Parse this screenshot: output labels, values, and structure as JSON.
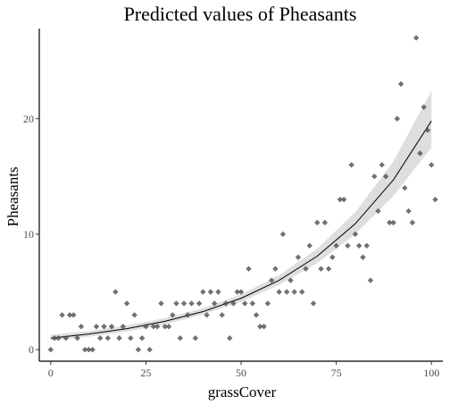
{
  "chart_data": {
    "type": "scatter",
    "title": "Predicted values of Pheasants",
    "xlabel": "grassCover",
    "ylabel": "Pheasants",
    "xlim": [
      -3,
      103
    ],
    "ylim": [
      -1,
      27.8
    ],
    "xticks": [
      0,
      25,
      50,
      75,
      100
    ],
    "yticks": [
      0,
      10,
      20
    ],
    "grid": false,
    "points": [
      [
        0,
        0
      ],
      [
        1,
        1
      ],
      [
        2,
        1
      ],
      [
        3,
        3
      ],
      [
        4,
        1
      ],
      [
        5,
        3
      ],
      [
        6,
        3
      ],
      [
        7,
        1
      ],
      [
        8,
        2
      ],
      [
        9,
        0
      ],
      [
        10,
        0
      ],
      [
        11,
        0
      ],
      [
        12,
        2
      ],
      [
        13,
        1
      ],
      [
        14,
        2
      ],
      [
        15,
        1
      ],
      [
        16,
        2
      ],
      [
        17,
        5
      ],
      [
        18,
        1
      ],
      [
        19,
        2
      ],
      [
        20,
        4
      ],
      [
        21,
        1
      ],
      [
        22,
        3
      ],
      [
        23,
        0
      ],
      [
        24,
        1
      ],
      [
        25,
        2
      ],
      [
        26,
        0
      ],
      [
        27,
        2
      ],
      [
        28,
        2
      ],
      [
        29,
        4
      ],
      [
        30,
        2
      ],
      [
        31,
        2
      ],
      [
        32,
        3
      ],
      [
        33,
        4
      ],
      [
        34,
        1
      ],
      [
        35,
        4
      ],
      [
        36,
        3
      ],
      [
        37,
        4
      ],
      [
        38,
        1
      ],
      [
        39,
        4
      ],
      [
        40,
        5
      ],
      [
        41,
        3
      ],
      [
        42,
        5
      ],
      [
        43,
        4
      ],
      [
        44,
        5
      ],
      [
        45,
        3
      ],
      [
        46,
        4
      ],
      [
        47,
        1
      ],
      [
        48,
        4
      ],
      [
        49,
        5
      ],
      [
        50,
        5
      ],
      [
        51,
        4
      ],
      [
        52,
        7
      ],
      [
        53,
        4
      ],
      [
        54,
        3
      ],
      [
        55,
        2
      ],
      [
        56,
        2
      ],
      [
        57,
        4
      ],
      [
        58,
        6
      ],
      [
        59,
        7
      ],
      [
        60,
        5
      ],
      [
        61,
        10
      ],
      [
        62,
        5
      ],
      [
        63,
        6
      ],
      [
        64,
        5
      ],
      [
        65,
        8
      ],
      [
        66,
        5
      ],
      [
        67,
        7
      ],
      [
        68,
        9
      ],
      [
        69,
        4
      ],
      [
        70,
        11
      ],
      [
        71,
        7
      ],
      [
        72,
        11
      ],
      [
        73,
        7
      ],
      [
        74,
        8
      ],
      [
        75,
        9
      ],
      [
        76,
        13
      ],
      [
        77,
        13
      ],
      [
        78,
        9
      ],
      [
        79,
        16
      ],
      [
        80,
        10
      ],
      [
        81,
        9
      ],
      [
        82,
        8
      ],
      [
        83,
        9
      ],
      [
        84,
        6
      ],
      [
        85,
        15
      ],
      [
        86,
        12
      ],
      [
        87,
        16
      ],
      [
        88,
        15
      ],
      [
        89,
        11
      ],
      [
        90,
        11
      ],
      [
        91,
        20
      ],
      [
        92,
        23
      ],
      [
        93,
        14
      ],
      [
        94,
        12
      ],
      [
        95,
        11
      ],
      [
        96,
        27
      ],
      [
        97,
        17
      ],
      [
        98,
        21
      ],
      [
        99,
        19
      ],
      [
        100,
        16
      ],
      [
        101,
        13
      ]
    ],
    "fit": {
      "x": [
        0,
        10,
        20,
        30,
        40,
        50,
        60,
        70,
        80,
        90,
        100
      ],
      "y": [
        1.0,
        1.35,
        1.82,
        2.45,
        3.3,
        4.45,
        6.0,
        8.1,
        10.9,
        14.7,
        19.8
      ],
      "lower": [
        0.78,
        1.12,
        1.58,
        2.2,
        3.05,
        4.15,
        5.6,
        7.5,
        10.0,
        13.3,
        17.5
      ],
      "upper": [
        1.28,
        1.62,
        2.1,
        2.72,
        3.58,
        4.78,
        6.45,
        8.75,
        11.9,
        16.3,
        22.4
      ]
    }
  }
}
